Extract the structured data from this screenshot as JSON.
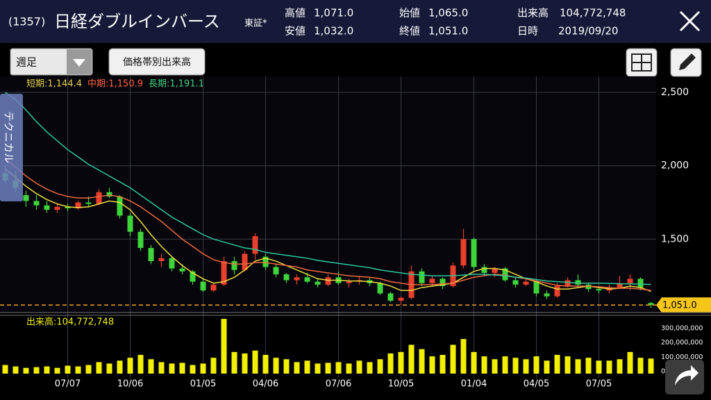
{
  "header": {
    "code": "(1357)",
    "name": "日経ダブルインバース",
    "market": "東証*",
    "stats": [
      [
        "高値",
        "1,071.0"
      ],
      [
        "安値",
        "1,032.0"
      ],
      [
        "始値",
        "1,065.0"
      ],
      [
        "終値",
        "1,051.0"
      ],
      [
        "出来高",
        "104,772,748"
      ],
      [
        "日時",
        "2019/09/20"
      ]
    ]
  },
  "toolbar": {
    "period": "週足",
    "volume_by_price": "価格帯別出来高",
    "technical_tab": "テクニカル"
  },
  "chart_data": [
    {
      "type": "candlestick",
      "up_color": "#e8402c",
      "down_color": "#3ed43a",
      "grid": true,
      "categories": [
        null,
        null,
        null,
        null,
        null,
        null,
        "07/07",
        null,
        null,
        null,
        null,
        null,
        "10/06",
        null,
        null,
        null,
        null,
        null,
        null,
        "01/05",
        null,
        null,
        null,
        null,
        null,
        "04/06",
        null,
        null,
        null,
        null,
        null,
        null,
        "07/06",
        null,
        null,
        null,
        null,
        null,
        "10/05",
        null,
        null,
        null,
        null,
        null,
        null,
        "01/04",
        null,
        null,
        null,
        null,
        null,
        "04/05",
        null,
        null,
        null,
        null,
        null,
        "07/05",
        null,
        null,
        null,
        null,
        null
      ],
      "ohlc": [
        [
          1950,
          2000,
          1880,
          1900
        ],
        [
          1900,
          1960,
          1820,
          1850
        ],
        [
          1800,
          1830,
          1720,
          1760
        ],
        [
          1760,
          1800,
          1700,
          1730
        ],
        [
          1730,
          1760,
          1680,
          1700
        ],
        [
          1700,
          1740,
          1680,
          1720
        ],
        [
          1720,
          1740,
          1690,
          1710
        ],
        [
          1710,
          1760,
          1700,
          1750
        ],
        [
          1750,
          1790,
          1720,
          1740
        ],
        [
          1740,
          1840,
          1730,
          1820
        ],
        [
          1820,
          1850,
          1780,
          1790
        ],
        [
          1790,
          1800,
          1640,
          1660
        ],
        [
          1660,
          1680,
          1520,
          1550
        ],
        [
          1550,
          1570,
          1420,
          1440
        ],
        [
          1440,
          1460,
          1330,
          1350
        ],
        [
          1350,
          1400,
          1310,
          1370
        ],
        [
          1370,
          1380,
          1280,
          1300
        ],
        [
          1300,
          1330,
          1260,
          1280
        ],
        [
          1280,
          1290,
          1190,
          1210
        ],
        [
          1210,
          1230,
          1140,
          1150
        ],
        [
          1150,
          1200,
          1140,
          1190
        ],
        [
          1190,
          1380,
          1180,
          1350
        ],
        [
          1350,
          1380,
          1260,
          1290
        ],
        [
          1290,
          1420,
          1280,
          1400
        ],
        [
          1400,
          1540,
          1360,
          1520
        ],
        [
          1380,
          1400,
          1290,
          1310
        ],
        [
          1310,
          1330,
          1240,
          1260
        ],
        [
          1260,
          1270,
          1200,
          1220
        ],
        [
          1220,
          1260,
          1190,
          1240
        ],
        [
          1240,
          1270,
          1200,
          1210
        ],
        [
          1210,
          1230,
          1170,
          1190
        ],
        [
          1190,
          1260,
          1180,
          1240
        ],
        [
          1240,
          1280,
          1190,
          1200
        ],
        [
          1200,
          1230,
          1170,
          1210
        ],
        [
          1210,
          1250,
          1190,
          1220
        ],
        [
          1220,
          1240,
          1180,
          1200
        ],
        [
          1200,
          1210,
          1120,
          1130
        ],
        [
          1130,
          1140,
          1070,
          1080
        ],
        [
          1080,
          1110,
          1050,
          1100
        ],
        [
          1100,
          1320,
          1090,
          1280
        ],
        [
          1280,
          1300,
          1180,
          1200
        ],
        [
          1200,
          1250,
          1180,
          1230
        ],
        [
          1230,
          1240,
          1160,
          1180
        ],
        [
          1180,
          1340,
          1170,
          1320
        ],
        [
          1320,
          1570,
          1300,
          1500
        ],
        [
          1500,
          1510,
          1290,
          1310
        ],
        [
          1310,
          1330,
          1250,
          1270
        ],
        [
          1270,
          1310,
          1240,
          1300
        ],
        [
          1300,
          1310,
          1210,
          1220
        ],
        [
          1220,
          1240,
          1170,
          1190
        ],
        [
          1190,
          1230,
          1180,
          1210
        ],
        [
          1210,
          1220,
          1110,
          1130
        ],
        [
          1130,
          1150,
          1090,
          1110
        ],
        [
          1110,
          1200,
          1100,
          1180
        ],
        [
          1180,
          1240,
          1170,
          1220
        ],
        [
          1220,
          1260,
          1170,
          1190
        ],
        [
          1190,
          1200,
          1140,
          1160
        ],
        [
          1160,
          1180,
          1130,
          1150
        ],
        [
          1150,
          1190,
          1130,
          1170
        ],
        [
          1170,
          1250,
          1160,
          1200
        ],
        [
          1200,
          1260,
          1150,
          1230
        ],
        [
          1230,
          1240,
          1150,
          1170
        ],
        [
          1065,
          1071,
          1032,
          1051
        ]
      ],
      "series": [
        {
          "name": "短期:1,144.4",
          "color": "#f0dc40",
          "label_color": "#e8d24a",
          "values": [
            1980,
            1920,
            1860,
            1810,
            1770,
            1740,
            1720,
            1715,
            1720,
            1740,
            1760,
            1750,
            1700,
            1620,
            1530,
            1450,
            1380,
            1320,
            1270,
            1230,
            1200,
            1210,
            1240,
            1290,
            1350,
            1370,
            1350,
            1320,
            1290,
            1260,
            1230,
            1220,
            1220,
            1215,
            1215,
            1210,
            1200,
            1180,
            1150,
            1150,
            1170,
            1180,
            1190,
            1200,
            1240,
            1280,
            1300,
            1300,
            1290,
            1260,
            1230,
            1210,
            1180,
            1160,
            1160,
            1170,
            1180,
            1170,
            1160,
            1165,
            1180,
            1170,
            1144.4
          ]
        },
        {
          "name": "中期:1,150.9",
          "color": "#f06a40",
          "label_color": "#ff6040",
          "values": [
            2050,
            1990,
            1930,
            1880,
            1840,
            1810,
            1790,
            1780,
            1780,
            1790,
            1800,
            1790,
            1760,
            1720,
            1670,
            1620,
            1560,
            1500,
            1450,
            1400,
            1360,
            1340,
            1330,
            1330,
            1340,
            1340,
            1330,
            1320,
            1310,
            1290,
            1280,
            1270,
            1260,
            1250,
            1245,
            1240,
            1230,
            1210,
            1200,
            1190,
            1190,
            1190,
            1195,
            1200,
            1220,
            1240,
            1250,
            1260,
            1255,
            1240,
            1230,
            1215,
            1200,
            1185,
            1180,
            1180,
            1180,
            1175,
            1170,
            1165,
            1165,
            1160,
            1150.9
          ]
        },
        {
          "name": "長期:1,191.1",
          "color": "#2ec9a0",
          "label_color": "#40d080",
          "values": [
            2500,
            2450,
            2380,
            2300,
            2230,
            2170,
            2110,
            2060,
            2010,
            1970,
            1930,
            1890,
            1850,
            1800,
            1750,
            1700,
            1650,
            1610,
            1570,
            1530,
            1500,
            1480,
            1460,
            1440,
            1430,
            1410,
            1400,
            1390,
            1380,
            1370,
            1355,
            1345,
            1335,
            1325,
            1315,
            1305,
            1290,
            1280,
            1270,
            1260,
            1255,
            1250,
            1250,
            1250,
            1255,
            1260,
            1260,
            1255,
            1250,
            1240,
            1235,
            1225,
            1215,
            1210,
            1205,
            1200,
            1200,
            1200,
            1198,
            1196,
            1195,
            1193,
            1191.1
          ]
        }
      ],
      "ylim": [
        1000,
        2609
      ],
      "yticks": [
        {
          "value": 1500,
          "label": "1,500"
        },
        {
          "value": 2000,
          "label": "2,000"
        },
        {
          "value": 2500,
          "label": "2,500"
        }
      ],
      "current_price": {
        "value": 1051,
        "label": "1,051.0"
      }
    },
    {
      "type": "bar",
      "name": "出来高:104,772,748",
      "color": "#f2f000",
      "grid": false,
      "values": [
        60000000,
        50000000,
        40000000,
        45000000,
        50000000,
        40000000,
        55000000,
        50000000,
        60000000,
        80000000,
        70000000,
        90000000,
        110000000,
        130000000,
        100000000,
        80000000,
        70000000,
        75000000,
        60000000,
        70000000,
        110000000,
        380000000,
        150000000,
        140000000,
        160000000,
        130000000,
        110000000,
        100000000,
        80000000,
        90000000,
        70000000,
        75000000,
        80000000,
        70000000,
        90000000,
        80000000,
        100000000,
        140000000,
        150000000,
        200000000,
        170000000,
        120000000,
        130000000,
        200000000,
        240000000,
        150000000,
        120000000,
        100000000,
        120000000,
        110000000,
        100000000,
        120000000,
        90000000,
        130000000,
        120000000,
        100000000,
        110000000,
        90000000,
        90000000,
        100000000,
        150000000,
        110000000,
        104772748
      ],
      "ylim": [
        0,
        400000000
      ],
      "yticks": [
        0,
        {
          "value": 100000000,
          "label": "100,000,000"
        },
        {
          "value": 200000000,
          "label": "200,000,000"
        },
        {
          "value": 300000000,
          "label": "300,000,000"
        }
      ]
    }
  ]
}
